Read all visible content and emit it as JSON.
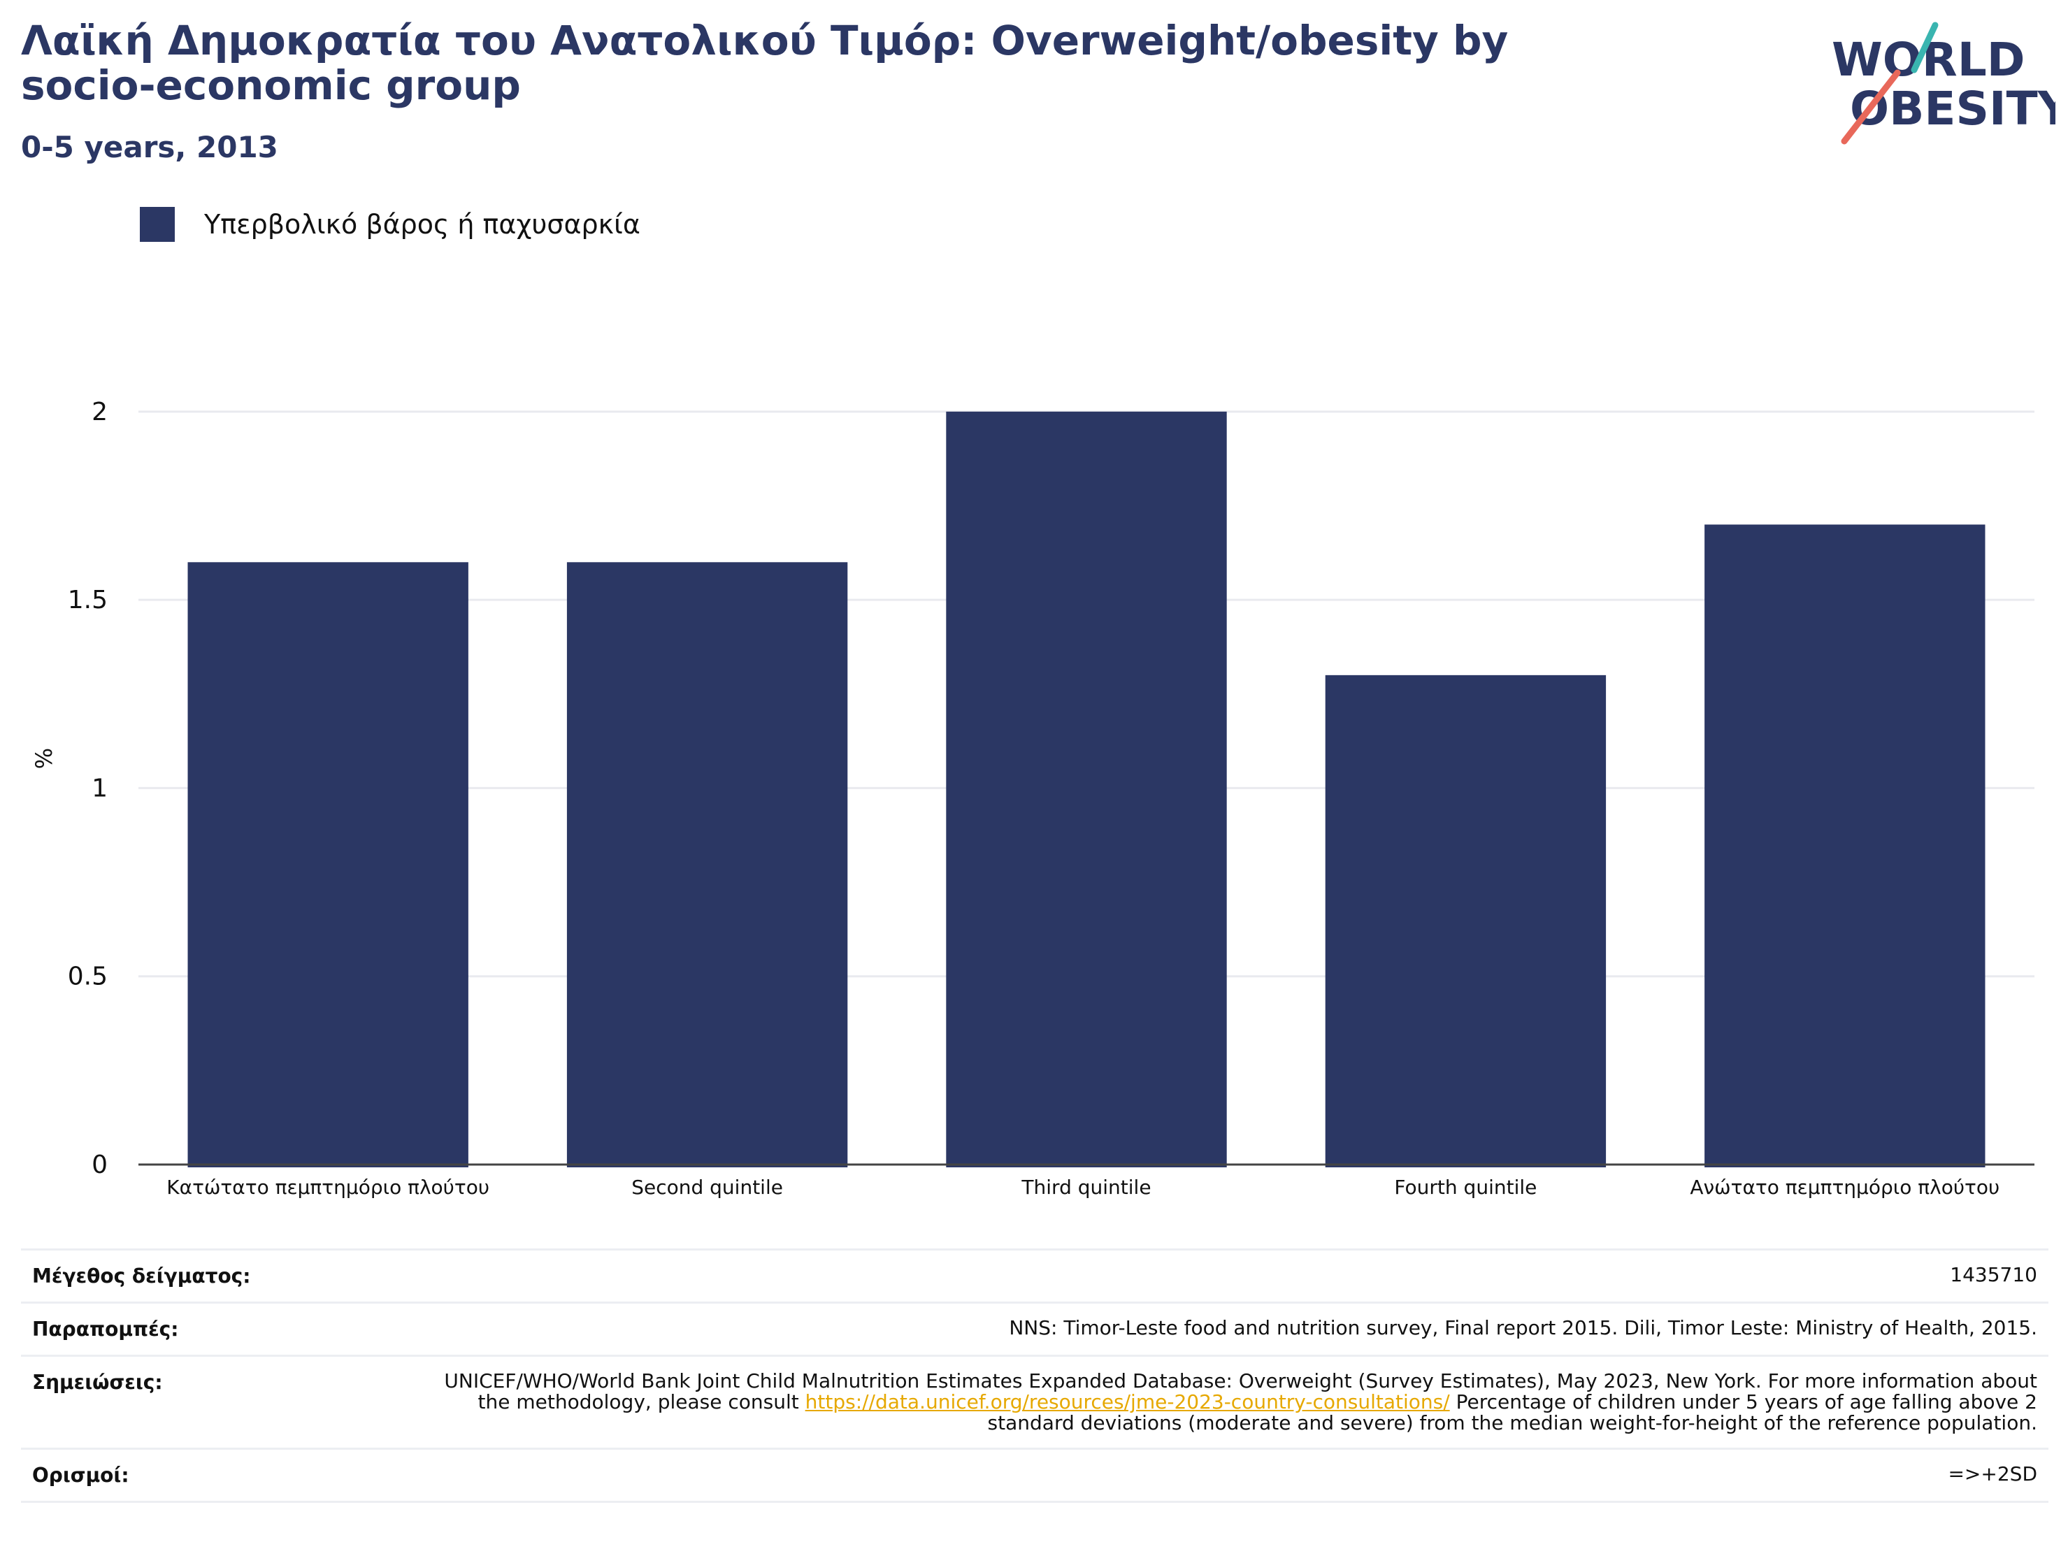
{
  "header": {
    "title": "Λαϊκή Δημοκρατία του Ανατολικού Τιμόρ: Overweight/obesity by socio-economic group",
    "subtitle": "0-5 years, 2013"
  },
  "logo": {
    "line1": "WORLD",
    "line2": "OBESITY"
  },
  "legend": {
    "label": "Υπερβολικό βάρος ή παχυσαρκία"
  },
  "colors": {
    "bar": "#2b3764",
    "brand_teal": "#3ab5b0",
    "brand_coral": "#e8685a"
  },
  "chart_data": {
    "type": "bar",
    "categories": [
      "Κατώτατο πεμπτημόριο πλούτου",
      "Second quintile",
      "Third quintile",
      "Fourth quintile",
      "Ανώτατο πεμπτημόριο πλούτου"
    ],
    "series": [
      {
        "name": "Υπερβολικό βάρος ή παχυσαρκία",
        "values": [
          1.6,
          1.6,
          2.0,
          1.3,
          1.7
        ]
      }
    ],
    "ylabel": "%",
    "ylim": [
      0,
      2.1
    ],
    "yticks": [
      "0",
      "0.5",
      "1",
      "1.5",
      "2"
    ],
    "grid": true,
    "legend_position": "top-left"
  },
  "meta": {
    "sample_label": "Μέγεθος δείγματος:",
    "sample_value": "1435710",
    "refs_label": "Παραπομπές:",
    "refs_value": "NNS: Timor-Leste food and nutrition survey, Final report 2015. Dili, Timor Leste: Ministry of Health, 2015.",
    "notes_label": "Σημειώσεις:",
    "notes_before": "UNICEF/WHO/World Bank Joint Child Malnutrition Estimates Expanded Database: Overweight (Survey Estimates), May 2023, New York. For more information about the methodology, please consult",
    "notes_link": "https://data.unicef.org/resources/jme-2023-country-consultations/",
    "notes_after": "Percentage of children under 5 years of age falling above 2 standard deviations (moderate and severe) from the median weight-for-height of the reference population.",
    "defs_label": "Ορισμοί:",
    "defs_value": "=>+2SD"
  }
}
